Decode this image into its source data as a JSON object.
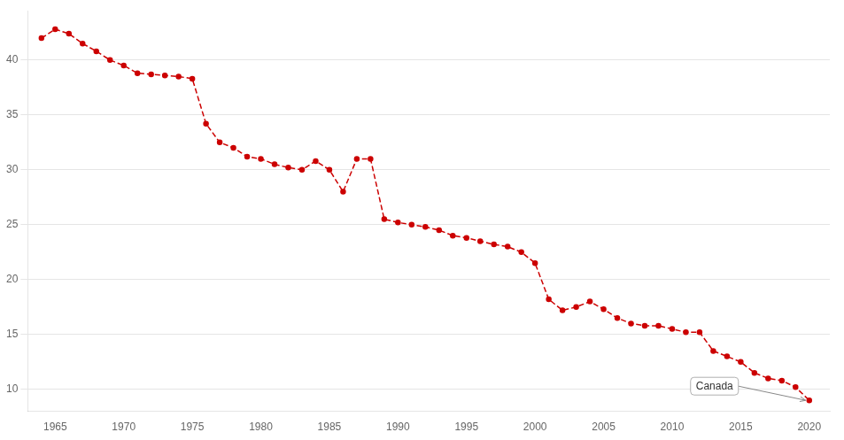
{
  "chart_data": {
    "type": "line",
    "x": [
      1964,
      1965,
      1966,
      1967,
      1968,
      1969,
      1970,
      1971,
      1972,
      1973,
      1974,
      1975,
      1976,
      1977,
      1978,
      1979,
      1980,
      1981,
      1982,
      1983,
      1984,
      1985,
      1986,
      1987,
      1988,
      1989,
      1990,
      1991,
      1992,
      1993,
      1994,
      1995,
      1996,
      1997,
      1998,
      1999,
      2000,
      2001,
      2002,
      2003,
      2004,
      2005,
      2006,
      2007,
      2008,
      2009,
      2010,
      2011,
      2012,
      2013,
      2014,
      2015,
      2016,
      2017,
      2018,
      2019,
      2020
    ],
    "values": [
      42.0,
      42.8,
      42.4,
      41.5,
      40.8,
      40.0,
      39.5,
      38.8,
      38.7,
      38.6,
      38.5,
      38.3,
      34.2,
      32.5,
      32.0,
      31.2,
      31.0,
      30.5,
      30.2,
      30.0,
      30.8,
      30.0,
      28.0,
      31.0,
      31.0,
      25.5,
      25.2,
      25.0,
      24.8,
      24.5,
      24.0,
      23.8,
      23.5,
      23.2,
      23.0,
      22.5,
      21.5,
      18.2,
      17.2,
      17.5,
      18.0,
      17.3,
      16.5,
      16.0,
      15.8,
      15.8,
      15.5,
      15.2,
      15.2,
      13.5,
      13.0,
      12.5,
      11.5,
      11.0,
      10.8,
      10.2,
      9.0
    ],
    "color": "#cc0000",
    "marker": "circle",
    "line_style": "dashed",
    "xlim": [
      1963.0,
      2021.5
    ],
    "xticks": [
      1965,
      1970,
      1975,
      1980,
      1985,
      1990,
      1995,
      2000,
      2005,
      2010,
      2015,
      2020
    ],
    "ylim": [
      8.0,
      44.5
    ],
    "yticks": [
      10,
      15,
      20,
      25,
      30,
      35,
      40
    ],
    "grid": "y",
    "annotations": [
      {
        "text": "Canada",
        "x": 2020,
        "y": 9.0
      }
    ]
  }
}
